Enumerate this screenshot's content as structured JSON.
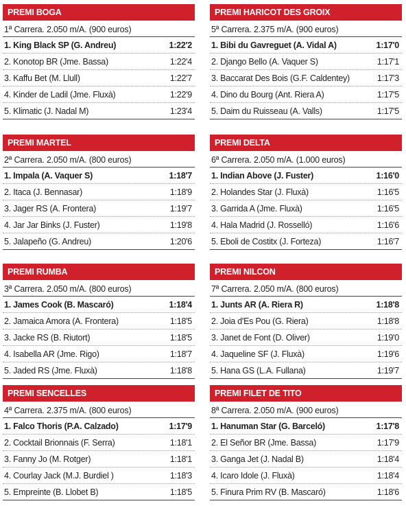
{
  "races": [
    {
      "title": "PREMI BOGA",
      "subtitle": "1ª Carrera. 2.050 m/A. (900 euros)",
      "rows": [
        [
          "1. King Black SP (G. Andreu)",
          "1:22'2"
        ],
        [
          "2. Konotop BR (Jme. Bassa)",
          "1:22'4"
        ],
        [
          "3. Kaffu Bet (M. Llull)",
          "1:22'7"
        ],
        [
          "4. Kinder de Ladil (Jme. Fluxà)",
          "1:22'9"
        ],
        [
          "5. Klimatic (J. Nadal M)",
          "1:23'4"
        ]
      ]
    },
    {
      "title": "PREMI HARICOT DES GROIX",
      "subtitle": "5ª Carrera. 2.375 m/A. (900 euros)",
      "rows": [
        [
          "1. Bibi du Gavreguet (A. Vidal A)",
          "1:17'0"
        ],
        [
          "2. Django Bello (A. Vaquer S)",
          "1:17'1"
        ],
        [
          "3. Baccarat Des Bois (G.F. Caldentey)",
          "1:17'3"
        ],
        [
          "4. Dino du Bourg (Ant. Riera A)",
          "1:17'5"
        ],
        [
          "5. Daim du Ruisseau (A. Valls)",
          "1:17'5"
        ]
      ]
    },
    {
      "title": "PREMI MARTEL",
      "subtitle": "2ª Carrera. 2.050 m/A. (800 euros)",
      "rows": [
        [
          "1. Impala (A. Vaquer S)",
          "1:18'7"
        ],
        [
          "2. Itaca (J. Bennasar)",
          "1:18'9"
        ],
        [
          "3. Jager RS (A. Frontera)",
          "1:19'7"
        ],
        [
          "4. Jar Jar Binks (J. Fuster)",
          "1:19'8"
        ],
        [
          "5. Jalapeño (G. Andreu)",
          "1:20'6"
        ]
      ]
    },
    {
      "title": "PREMI DELTA",
      "subtitle": "6ª Carrera. 2.050 m/A. (1.000 euros)",
      "rows": [
        [
          "1. Indian Above (J. Fuster)",
          "1:16'0"
        ],
        [
          "2. Holandes Star (J. Fluxà)",
          "1:16'5"
        ],
        [
          "3. Garrida A (Jme. Fluxà)",
          "1:16'5"
        ],
        [
          "4. Hala Madrid (J. Rosselló)",
          "1:16'6"
        ],
        [
          "5. Eboli de Costitx (J. Forteza)",
          "1:16'7"
        ]
      ]
    },
    {
      "title": "PREMI RUMBA",
      "subtitle": "3ª Carrera. 2.050 m/A. (800 euros)",
      "rows": [
        [
          "1. James Cook (B. Mascaró)",
          "1:18'4"
        ],
        [
          "2. Jamaica Amora (A. Frontera)",
          "1:18'5"
        ],
        [
          "3. Jacke RS (B. Riutort)",
          "1:18'5"
        ],
        [
          "4. Isabella AR (Jme. Rigo)",
          "1:18'7"
        ],
        [
          "5. Jaded RS (Jme. Fluxà)",
          "1:18'8"
        ]
      ]
    },
    {
      "title": "PREMI NILCON",
      "subtitle": "7ª Carrera. 2.050 m/A. (800 euros)",
      "rows": [
        [
          "1. Junts AR (A. Riera R)",
          "1:18'8"
        ],
        [
          "2. Joia d'Es Pou (G. Riera)",
          "1:18'8"
        ],
        [
          "3. Janet de Font (D. Oliver)",
          "1:19'0"
        ],
        [
          "4. Jaqueline SF (J. Fluxà)",
          "1:19'6"
        ],
        [
          "5. Hana GS (L.A. Fullana)",
          "1:19'7"
        ]
      ]
    },
    {
      "title": "PREMI SENCELLES",
      "subtitle": "4ª Carrera. 2.375 m/A. (800 euros)",
      "rows": [
        [
          "1. Falco Thoris (P.A. Calzado)",
          "1:17'9"
        ],
        [
          "2. Cocktail Brionnais (F. Serra)",
          "1:18'1"
        ],
        [
          "3. Fanny Jo (M. Rotger)",
          "1:18'1"
        ],
        [
          "4. Courlay Jack (M.J. Burdiel )",
          "1:18'3"
        ],
        [
          "5. Empreinte (B. Llobet B)",
          "1:18'5"
        ]
      ]
    },
    {
      "title": "PREMI FILET DE TITO",
      "subtitle": "8ª Carrera. 2.050 m/A. (900 euros)",
      "rows": [
        [
          "1. Hanuman Star (G. Barceló)",
          "1:17'8"
        ],
        [
          "2. El Señor BR (Jme. Bassa)",
          "1:17'9"
        ],
        [
          "3. Ganga Jet (J. Nadal B)",
          "1:18'4"
        ],
        [
          "4. Icaro Idole (J. Fluxà)",
          "1:18'4"
        ],
        [
          "5. Finura Prim RV (B. Mascaró)",
          "1:18'6"
        ]
      ]
    }
  ]
}
